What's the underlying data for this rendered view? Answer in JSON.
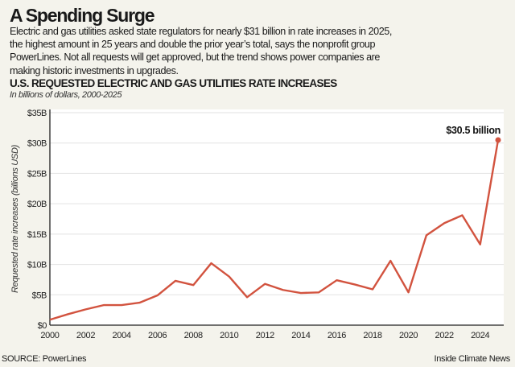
{
  "header": {
    "title": "A Spending Surge",
    "body_lines": [
      "Electric and gas utilities asked state regulators for nearly $31 billion in rate increases in 2025,",
      "the highest amount in 25 years and double the prior year’s total, says the nonprofit group",
      "PowerLines. Not all requests will get approved, but the trend shows power companies are",
      "making historic investments in upgrades."
    ]
  },
  "chart_data": {
    "type": "line",
    "title": "U.S. REQUESTED ELECTRIC AND GAS UTILITIES RATE INCREASES",
    "subtitle": "In billions of dollars, 2000-2025",
    "xlabel": "",
    "ylabel": "Requested rate increases (billions USD)",
    "x": [
      2000,
      2001,
      2002,
      2003,
      2004,
      2005,
      2006,
      2007,
      2008,
      2009,
      2010,
      2011,
      2012,
      2013,
      2014,
      2015,
      2016,
      2017,
      2018,
      2019,
      2020,
      2021,
      2022,
      2023,
      2024,
      2025
    ],
    "series": [
      {
        "values": [
          0.9,
          1.8,
          2.6,
          3.3,
          3.3,
          3.7,
          4.9,
          7.3,
          6.6,
          10.2,
          8.0,
          4.6,
          6.8,
          5.8,
          5.3,
          5.4,
          7.4,
          6.7,
          5.9,
          10.6,
          5.4,
          14.8,
          16.8,
          18.1,
          13.3,
          30.5
        ],
        "color": "#d2533f"
      }
    ],
    "xlim": [
      2000,
      2025
    ],
    "ylim": [
      0,
      35
    ],
    "x_ticks": [
      "2000",
      "2002",
      "2004",
      "2006",
      "2008",
      "2010",
      "2012",
      "2014",
      "2016",
      "2018",
      "2020",
      "2022",
      "2024"
    ],
    "y_ticks": [
      "$0",
      "$5B",
      "$10B",
      "$15B",
      "$20B",
      "$25B",
      "$30B",
      "$35B"
    ],
    "grid": true,
    "annotation": "$30.5 billion"
  },
  "footer": {
    "source": "SOURCE: PowerLines",
    "credit": "Inside Climate News"
  }
}
